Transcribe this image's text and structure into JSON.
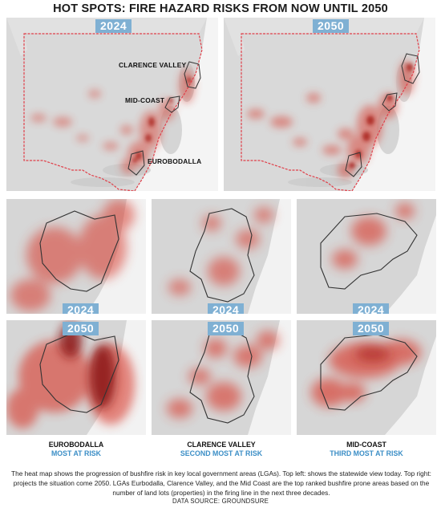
{
  "title": "HOT SPOTS: FIRE HAZARD RISKS FROM NOW UNTIL 2050",
  "top_maps": {
    "left": {
      "year": "2024",
      "labels": {
        "clarence": "CLARENCE VALLEY",
        "midcoast": "MID-COAST",
        "eurobodalla": "EUROBODALLA"
      }
    },
    "right": {
      "year": "2050"
    }
  },
  "lgas": [
    {
      "name": "EUROBODALLA",
      "rank": "MOST AT RISK",
      "year_current": "2024",
      "year_future": "2050"
    },
    {
      "name": "CLARENCE VALLEY",
      "rank": "SECOND MOST AT RISK",
      "year_current": "2024",
      "year_future": "2050"
    },
    {
      "name": "MID-COAST",
      "rank": "THIRD MOST AT RISK",
      "year_current": "2024",
      "year_future": "2050"
    }
  ],
  "caption": "The heat map shows the progression of bushfire risk in key local government areas (LGAs). Top left: shows the statewide view today. Top right: projects the situation come 2050. LGAs Eurbodalla, Clarence Valley, and the Mid Coast are the top ranked bushfire prone areas based on the number of land lots (properties) in the firing line in the next three decades.",
  "source": "DATA SOURCE: GROUNDSURE",
  "colors": {
    "year_tag": "#7fb0d3",
    "rank_text": "#3b8ec6",
    "state_border": "#e0404a",
    "heat": "#c0281e",
    "land": "#d9d9d9",
    "ocean": "#ffffff"
  }
}
